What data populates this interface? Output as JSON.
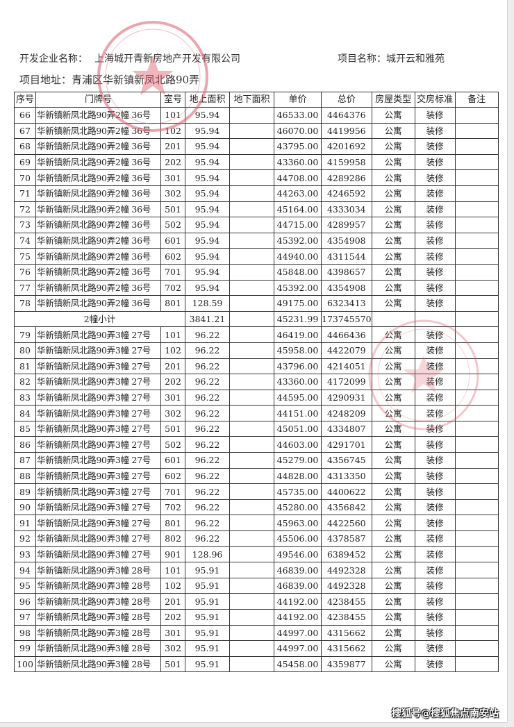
{
  "header": {
    "developer_label": "开发企业名称：",
    "developer": "上海城开青新房地产开发有限公司",
    "project_label": "项目名称：",
    "project": "城开云和雅苑",
    "address_label": "项目地址：",
    "address": "青浦区华新镇新凤北路90弄"
  },
  "table": {
    "columns": [
      "序号",
      "门牌号",
      "室号",
      "地上面积",
      "地下面积",
      "单价",
      "总价",
      "房屋类型",
      "交房标准",
      "备注"
    ],
    "rows": [
      [
        "66",
        "华新镇新凤北路90弄2幢  36号",
        "101",
        "95.94",
        "",
        "46533.00",
        "4464376",
        "公寓",
        "装修",
        ""
      ],
      [
        "67",
        "华新镇新凤北路90弄2幢  36号",
        "102",
        "95.94",
        "",
        "46070.00",
        "4419956",
        "公寓",
        "装修",
        ""
      ],
      [
        "68",
        "华新镇新凤北路90弄2幢  36号",
        "201",
        "95.94",
        "",
        "43795.00",
        "4201692",
        "公寓",
        "装修",
        ""
      ],
      [
        "69",
        "华新镇新凤北路90弄2幢  36号",
        "202",
        "95.94",
        "",
        "43360.00",
        "4159958",
        "公寓",
        "装修",
        ""
      ],
      [
        "70",
        "华新镇新凤北路90弄2幢  36号",
        "301",
        "95.94",
        "",
        "44708.00",
        "4289286",
        "公寓",
        "装修",
        ""
      ],
      [
        "71",
        "华新镇新凤北路90弄2幢  36号",
        "302",
        "95.94",
        "",
        "44263.00",
        "4246592",
        "公寓",
        "装修",
        ""
      ],
      [
        "72",
        "华新镇新凤北路90弄2幢  36号",
        "501",
        "95.94",
        "",
        "45164.00",
        "4333034",
        "公寓",
        "装修",
        ""
      ],
      [
        "73",
        "华新镇新凤北路90弄2幢  36号",
        "502",
        "95.94",
        "",
        "44715.00",
        "4289957",
        "公寓",
        "装修",
        ""
      ],
      [
        "74",
        "华新镇新凤北路90弄2幢  36号",
        "601",
        "95.94",
        "",
        "45392.00",
        "4354908",
        "公寓",
        "装修",
        ""
      ],
      [
        "75",
        "华新镇新凤北路90弄2幢  36号",
        "602",
        "95.94",
        "",
        "44940.00",
        "4311544",
        "公寓",
        "装修",
        ""
      ],
      [
        "76",
        "华新镇新凤北路90弄2幢  36号",
        "701",
        "95.94",
        "",
        "45848.00",
        "4398657",
        "公寓",
        "装修",
        ""
      ],
      [
        "77",
        "华新镇新凤北路90弄2幢  36号",
        "702",
        "95.94",
        "",
        "45392.00",
        "4354908",
        "公寓",
        "装修",
        ""
      ],
      [
        "78",
        "华新镇新凤北路90弄2幢  36号",
        "801",
        "128.59",
        "",
        "49175.00",
        "6323413",
        "公寓",
        "装修",
        ""
      ],
      {
        "subtotal": "2幢小计",
        "area": "3841.21",
        "price": "45231.99",
        "total": "173745570"
      },
      [
        "79",
        "华新镇新凤北路90弄3幢  27号",
        "101",
        "96.22",
        "",
        "46419.00",
        "4466436",
        "公寓",
        "装修",
        ""
      ],
      [
        "80",
        "华新镇新凤北路90弄3幢  27号",
        "102",
        "96.22",
        "",
        "45958.00",
        "4422079",
        "公寓",
        "装修",
        ""
      ],
      [
        "81",
        "华新镇新凤北路90弄3幢  27号",
        "201",
        "96.22",
        "",
        "43796.00",
        "4214051",
        "公寓",
        "装修",
        ""
      ],
      [
        "82",
        "华新镇新凤北路90弄3幢  27号",
        "202",
        "96.22",
        "",
        "43360.00",
        "4172099",
        "公寓",
        "装修",
        ""
      ],
      [
        "83",
        "华新镇新凤北路90弄3幢  27号",
        "301",
        "96.22",
        "",
        "44595.00",
        "4290931",
        "公寓",
        "装修",
        ""
      ],
      [
        "84",
        "华新镇新凤北路90弄3幢  27号",
        "302",
        "96.22",
        "",
        "44151.00",
        "4248209",
        "公寓",
        "装修",
        ""
      ],
      [
        "85",
        "华新镇新凤北路90弄3幢  27号",
        "501",
        "96.22",
        "",
        "45051.00",
        "4334807",
        "公寓",
        "装修",
        ""
      ],
      [
        "86",
        "华新镇新凤北路90弄3幢  27号",
        "502",
        "96.22",
        "",
        "44603.00",
        "4291701",
        "公寓",
        "装修",
        ""
      ],
      [
        "87",
        "华新镇新凤北路90弄3幢  27号",
        "601",
        "96.22",
        "",
        "45279.00",
        "4356745",
        "公寓",
        "装修",
        ""
      ],
      [
        "88",
        "华新镇新凤北路90弄3幢  27号",
        "602",
        "96.22",
        "",
        "44828.00",
        "4313350",
        "公寓",
        "装修",
        ""
      ],
      [
        "89",
        "华新镇新凤北路90弄3幢  27号",
        "701",
        "96.22",
        "",
        "45735.00",
        "4400622",
        "公寓",
        "装修",
        ""
      ],
      [
        "90",
        "华新镇新凤北路90弄3幢  27号",
        "702",
        "96.22",
        "",
        "45280.00",
        "4356842",
        "公寓",
        "装修",
        ""
      ],
      [
        "91",
        "华新镇新凤北路90弄3幢  27号",
        "801",
        "96.22",
        "",
        "45963.00",
        "4422560",
        "公寓",
        "装修",
        ""
      ],
      [
        "92",
        "华新镇新凤北路90弄3幢  27号",
        "802",
        "96.22",
        "",
        "45506.00",
        "4378587",
        "公寓",
        "装修",
        ""
      ],
      [
        "93",
        "华新镇新凤北路90弄3幢  27号",
        "901",
        "128.96",
        "",
        "49546.00",
        "6389452",
        "公寓",
        "装修",
        ""
      ],
      [
        "94",
        "华新镇新凤北路90弄3幢  28号",
        "101",
        "95.91",
        "",
        "46839.00",
        "4492328",
        "公寓",
        "装修",
        ""
      ],
      [
        "95",
        "华新镇新凤北路90弄3幢  28号",
        "102",
        "95.91",
        "",
        "46839.00",
        "4492328",
        "公寓",
        "装修",
        ""
      ],
      [
        "96",
        "华新镇新凤北路90弄3幢  28号",
        "201",
        "95.91",
        "",
        "44192.00",
        "4238455",
        "公寓",
        "装修",
        ""
      ],
      [
        "97",
        "华新镇新凤北路90弄3幢  28号",
        "202",
        "95.91",
        "",
        "44192.00",
        "4238455",
        "公寓",
        "装修",
        ""
      ],
      [
        "98",
        "华新镇新凤北路90弄3幢  28号",
        "301",
        "95.91",
        "",
        "44997.00",
        "4315662",
        "公寓",
        "装修",
        ""
      ],
      [
        "99",
        "华新镇新凤北路90弄3幢  28号",
        "302",
        "95.91",
        "",
        "44997.00",
        "4315662",
        "公寓",
        "装修",
        ""
      ],
      [
        "100",
        "华新镇新凤北路90弄3幢  28号",
        "501",
        "95.91",
        "",
        "45458.00",
        "4359877",
        "公寓",
        "装修",
        ""
      ]
    ]
  },
  "stamps": {
    "color": "#e05a6a"
  },
  "watermark": "搜狐号@搜狐焦点南安站"
}
